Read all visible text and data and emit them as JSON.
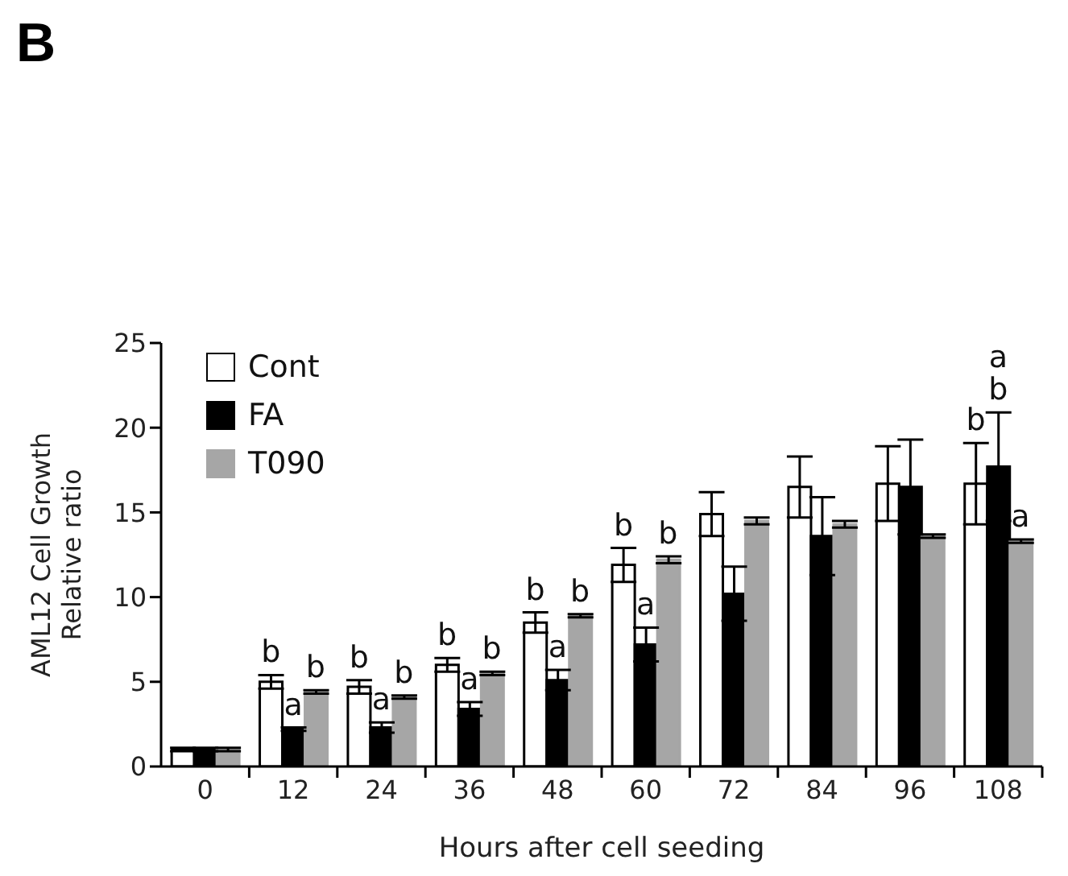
{
  "chart_data": {
    "type": "bar",
    "title": "B",
    "xlabel": "Hours after cell seeding",
    "ylabel": "AML12 Cell Growth\nRelative ratio",
    "x": [
      0,
      12,
      24,
      36,
      48,
      60,
      72,
      84,
      96,
      108
    ],
    "series": [
      {
        "name": "Cont",
        "color": "#ffffff",
        "values": [
          1,
          5.0,
          4.7,
          6.0,
          8.5,
          11.9,
          14.9,
          16.5,
          16.7,
          16.7
        ],
        "errors": [
          0.1,
          0.4,
          0.4,
          0.4,
          0.6,
          1.0,
          1.3,
          1.8,
          2.2,
          2.4
        ]
      },
      {
        "name": "FA",
        "color": "#000000",
        "values": [
          1,
          2.2,
          2.3,
          3.4,
          5.1,
          7.2,
          10.2,
          13.6,
          16.5,
          17.7
        ],
        "errors": [
          0.1,
          0.1,
          0.3,
          0.4,
          0.6,
          1.0,
          1.6,
          2.3,
          2.8,
          3.2
        ]
      },
      {
        "name": "T090",
        "color": "#a6a6a6",
        "values": [
          1,
          4.4,
          4.1,
          5.5,
          8.9,
          12.2,
          14.5,
          14.3,
          13.6,
          13.3
        ],
        "errors": [
          0.1,
          0.1,
          0.1,
          0.1,
          0.1,
          0.2,
          0.2,
          0.2,
          0.1,
          0.1
        ]
      }
    ],
    "xlim": [
      -6,
      114
    ],
    "xticks": [
      0,
      12,
      24,
      36,
      48,
      60,
      72,
      84,
      96,
      108,
      {
        "value": 6,
        "label": null
      },
      {
        "value": 18,
        "label": null
      },
      {
        "value": 30,
        "label": null
      },
      {
        "value": 42,
        "label": null
      },
      {
        "value": 54,
        "label": null
      },
      {
        "value": 66,
        "label": null
      },
      {
        "value": 78,
        "label": null
      },
      {
        "value": 90,
        "label": null
      },
      {
        "value": 102,
        "label": null
      },
      {
        "value": 114,
        "label": null
      }
    ],
    "ylim": [
      0,
      25
    ],
    "yticks": [
      0,
      5,
      10,
      15,
      20,
      25
    ],
    "legend": "top left",
    "annotations": [
      "b",
      {
        "text": "a",
        "x": 12,
        "y": 2.2
      },
      "b",
      "b",
      {
        "text": "a",
        "x": 24,
        "y": 2.3
      },
      "b",
      "b",
      {
        "text": "a",
        "x": 36,
        "y": 3.4
      },
      "b",
      "b",
      {
        "text": "a",
        "x": 48,
        "y": 5.1
      },
      "b",
      "b",
      {
        "text": "a",
        "x": 60,
        "y": 7.2
      },
      "b",
      "b",
      {
        "text": "b",
        "x": 108,
        "y": 17.7
      },
      {
        "text": "a",
        "x": 108,
        "y": 17.7
      },
      "a"
    ]
  }
}
